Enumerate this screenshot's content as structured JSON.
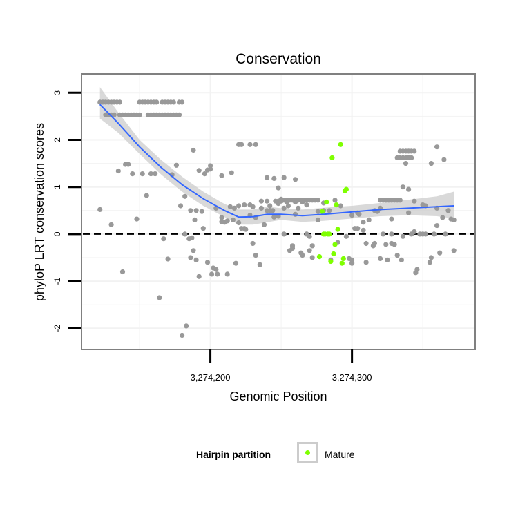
{
  "chart_data": {
    "type": "scatter",
    "title": "Conservation",
    "xlabel": "Genomic Position",
    "ylabel": "phyloP LRT conservation scores",
    "xlim": [
      3274109,
      3274387
    ],
    "ylim": [
      -2.45,
      3.4
    ],
    "x_ticks": [
      3274200,
      3274300
    ],
    "x_tick_labels": [
      "3,274,200",
      "3,274,300"
    ],
    "y_ticks": [
      -2,
      -1,
      0,
      1,
      2,
      3
    ],
    "y_tick_labels": [
      "-2",
      "-1",
      "0",
      "1",
      "2",
      "3"
    ],
    "grid": true,
    "reference_line": {
      "y": 0,
      "style": "dashed"
    },
    "legend": {
      "title": "Hairpin partition",
      "entries": [
        "Mature"
      ],
      "position": "bottom"
    },
    "colors": {
      "other": "#999999",
      "mature": "#7fff00",
      "smooth": "#3366ff",
      "ribbon": "#cccccc"
    },
    "series": [
      {
        "x": [
          3274122,
          3274124,
          3274126,
          3274128,
          3274130,
          3274132,
          3274134,
          3274136,
          3274150,
          3274152,
          3274154,
          3274156,
          3274158,
          3274160,
          3274162,
          3274166,
          3274168,
          3274170,
          3274172,
          3274174,
          3274178,
          3274180,
          3274126,
          3274128,
          3274130,
          3274132,
          3274136,
          3274138,
          3274140,
          3274142,
          3274144,
          3274146,
          3274148,
          3274150,
          3274156,
          3274158,
          3274160,
          3274162,
          3274164,
          3274166,
          3274168,
          3274170,
          3274172,
          3274174,
          3274176,
          3274178,
          3274122,
          3274130,
          3274135,
          3274138,
          3274140,
          3274142,
          3274145,
          3274148,
          3274152,
          3274155,
          3274158,
          3274161,
          3274164,
          3274167,
          3274170,
          3274173,
          3274176,
          3274179,
          3274182,
          3274185,
          3274187,
          3274188,
          3274190,
          3274192,
          3274195,
          3274198,
          3274200,
          3274202,
          3274205,
          3274208,
          3274210,
          3274212,
          3274215,
          3274217,
          3274220,
          3274222,
          3274225,
          3274228,
          3274230,
          3274232,
          3274235,
          3274238,
          3274240,
          3274242,
          3274245,
          3274248,
          3274250,
          3274252,
          3274255,
          3274258,
          3274260,
          3274262,
          3274265,
          3274268,
          3274270,
          3274220,
          3274222,
          3274228,
          3274232,
          3274240,
          3274245,
          3274252,
          3274258,
          3274265,
          3274270,
          3274180,
          3274183,
          3274186,
          3274189,
          3274192,
          3274196,
          3274200,
          3274204,
          3274208,
          3274212,
          3274216,
          3274220,
          3274224,
          3274228,
          3274232,
          3274236,
          3274240,
          3274244,
          3274248,
          3274252,
          3274256,
          3274260,
          3274264,
          3274268,
          3274272,
          3274276,
          3274280,
          3274284,
          3274288,
          3274292,
          3274296,
          3274300,
          3274304,
          3274308,
          3274312,
          3274316,
          3274320,
          3274324,
          3274328,
          3274332,
          3274336,
          3274340,
          3274344,
          3274348,
          3274352,
          3274356,
          3274360,
          3274364,
          3274368,
          3274372,
          3274246,
          3274248,
          3274250,
          3274252,
          3274254,
          3274256,
          3274258,
          3274260,
          3274262,
          3274264,
          3274266,
          3274268,
          3274270,
          3274272,
          3274274,
          3274276,
          3274320,
          3274322,
          3274324,
          3274326,
          3274328,
          3274330,
          3274332,
          3274334,
          3274334,
          3274336,
          3274338,
          3274340,
          3274342,
          3274344,
          3274332,
          3274334,
          3274336,
          3274338,
          3274340,
          3274342,
          3274280,
          3274285,
          3274290,
          3274300,
          3274305,
          3274310,
          3274315,
          3274320,
          3274325,
          3274330,
          3274335,
          3274340,
          3274345,
          3274350,
          3274355,
          3274360,
          3274365,
          3274370,
          3274372,
          3274368,
          3274362,
          3274358,
          3274352,
          3274346,
          3274342,
          3274338,
          3274302,
          3274298,
          3274308,
          3274318,
          3274328,
          3274182,
          3274186,
          3274188,
          3274190,
          3274194,
          3274198,
          3274201,
          3274204,
          3274208,
          3274214,
          3274218,
          3274224,
          3274230,
          3274236,
          3274242,
          3274248,
          3274254,
          3274260,
          3274268,
          3274272,
          3274276,
          3274300,
          3274304,
          3274310,
          3274316,
          3274322,
          3274328,
          3274336,
          3274344,
          3274350,
          3274356,
          3274360,
          3274366
        ],
        "y": [
          2.8,
          2.8,
          2.8,
          2.8,
          2.8,
          2.8,
          2.8,
          2.8,
          2.8,
          2.8,
          2.8,
          2.8,
          2.8,
          2.8,
          2.8,
          2.8,
          2.8,
          2.8,
          2.8,
          2.8,
          2.8,
          2.8,
          2.53,
          2.53,
          2.53,
          2.53,
          2.53,
          2.53,
          2.53,
          2.53,
          2.53,
          2.53,
          2.53,
          2.53,
          2.53,
          2.53,
          2.53,
          2.53,
          2.53,
          2.53,
          2.53,
          2.53,
          2.53,
          2.53,
          2.53,
          2.53,
          0.52,
          0.2,
          1.34,
          -0.8,
          1.48,
          1.48,
          1.28,
          0.32,
          1.28,
          0.82,
          1.28,
          1.28,
          -1.35,
          -0.1,
          -0.53,
          1.26,
          1.46,
          0.6,
          0.8,
          -0.1,
          -0.08,
          -0.35,
          -0.55,
          -0.9,
          0.12,
          1.36,
          1.38,
          -0.72,
          -0.85,
          1.24,
          0.25,
          -0.85,
          1.3,
          0.55,
          0.24,
          0.12,
          0.1,
          0.4,
          -0.2,
          -0.45,
          -0.65,
          0.2,
          0.5,
          0.6,
          0.36,
          0.98,
          0.74,
          0.0,
          0.6,
          -0.3,
          1.16,
          0.55,
          -0.45,
          0.0,
          -0.35,
          1.9,
          1.9,
          1.9,
          1.9,
          1.2,
          1.18,
          1.2,
          -0.25,
          0.68,
          -0.05,
          -2.15,
          -1.95,
          -0.5,
          0.3,
          1.35,
          1.28,
          1.45,
          0.55,
          0.35,
          0.28,
          0.3,
          0.6,
          0.12,
          0.62,
          0.35,
          0.55,
          0.7,
          0.5,
          0.38,
          0.55,
          -0.35,
          0.42,
          -0.4,
          0.62,
          -0.25,
          0.3,
          0.66,
          0.5,
          0.72,
          0.6,
          -0.05,
          0.4,
          0.12,
          0.08,
          0.3,
          -0.2,
          0.55,
          -0.22,
          0.0,
          -0.45,
          -0.05,
          0.45,
          0.05,
          0.0,
          0.6,
          -0.5,
          0.55,
          0.35,
          0.5,
          0.3,
          0.7,
          0.7,
          0.7,
          0.72,
          0.72,
          0.72,
          0.72,
          0.72,
          0.72,
          0.72,
          0.72,
          0.72,
          0.72,
          0.72,
          0.72,
          0.72,
          0.72,
          0.72,
          0.72,
          0.72,
          0.72,
          0.72,
          0.72,
          0.72,
          1.76,
          1.76,
          1.76,
          1.76,
          1.76,
          1.76,
          1.62,
          1.62,
          1.62,
          1.62,
          1.62,
          1.62,
          0.5,
          -0.55,
          -0.18,
          -0.55,
          0.42,
          -0.2,
          -0.25,
          -0.52,
          -0.55,
          -0.22,
          -0.55,
          0.95,
          -0.82,
          0.62,
          -0.6,
          0.18,
          1.58,
          0.32,
          -0.35,
          0.5,
          -0.4,
          0.0,
          0.0,
          -0.75,
          0.0,
          1.5,
          0.12,
          -0.52,
          0.25,
          0.48,
          0.32,
          0.0,
          0.5,
          1.78,
          0.5,
          0.48,
          -0.6,
          -0.85,
          -0.75,
          0.26,
          0.58,
          -0.62,
          0.62,
          0.58,
          0.7,
          0.5,
          0.65,
          0.68,
          0.68,
          0.0,
          -0.5,
          0.48,
          -0.62,
          0.45,
          -0.6,
          0.5,
          0.0,
          -0.2,
          1.0,
          0.7,
          0.0,
          1.5,
          1.85,
          0.0
        ]
      },
      {
        "name": "Mature",
        "x": [
          3274277,
          3274279,
          3274280,
          3274281,
          3274282,
          3274283,
          3274284,
          3274285,
          3274286,
          3274287,
          3274288,
          3274289,
          3274290,
          3274292,
          3274293,
          3274294,
          3274295,
          3274296
        ],
        "y": [
          -0.48,
          0.48,
          0.0,
          0.0,
          0.68,
          0.0,
          0.0,
          -0.58,
          1.62,
          -0.42,
          -0.22,
          0.62,
          0.1,
          1.9,
          -0.62,
          -0.52,
          0.92,
          0.95
        ]
      }
    ],
    "smooth": {
      "x": [
        3274122,
        3274135,
        3274150,
        3274165,
        3274180,
        3274195,
        3274210,
        3274220,
        3274230,
        3274240,
        3274250,
        3274265,
        3274280,
        3274300,
        3274320,
        3274340,
        3274360,
        3274372
      ],
      "y": [
        2.75,
        2.35,
        1.85,
        1.42,
        1.05,
        0.75,
        0.5,
        0.36,
        0.37,
        0.42,
        0.42,
        0.39,
        0.42,
        0.47,
        0.52,
        0.55,
        0.58,
        0.6
      ],
      "lower": [
        2.45,
        2.15,
        1.7,
        1.27,
        0.9,
        0.6,
        0.36,
        0.2,
        0.2,
        0.25,
        0.3,
        0.26,
        0.28,
        0.33,
        0.38,
        0.4,
        0.38,
        0.33
      ],
      "upper": [
        3.12,
        2.58,
        2.0,
        1.58,
        1.22,
        0.9,
        0.64,
        0.52,
        0.52,
        0.58,
        0.55,
        0.52,
        0.56,
        0.6,
        0.66,
        0.73,
        0.8,
        0.9
      ]
    }
  }
}
